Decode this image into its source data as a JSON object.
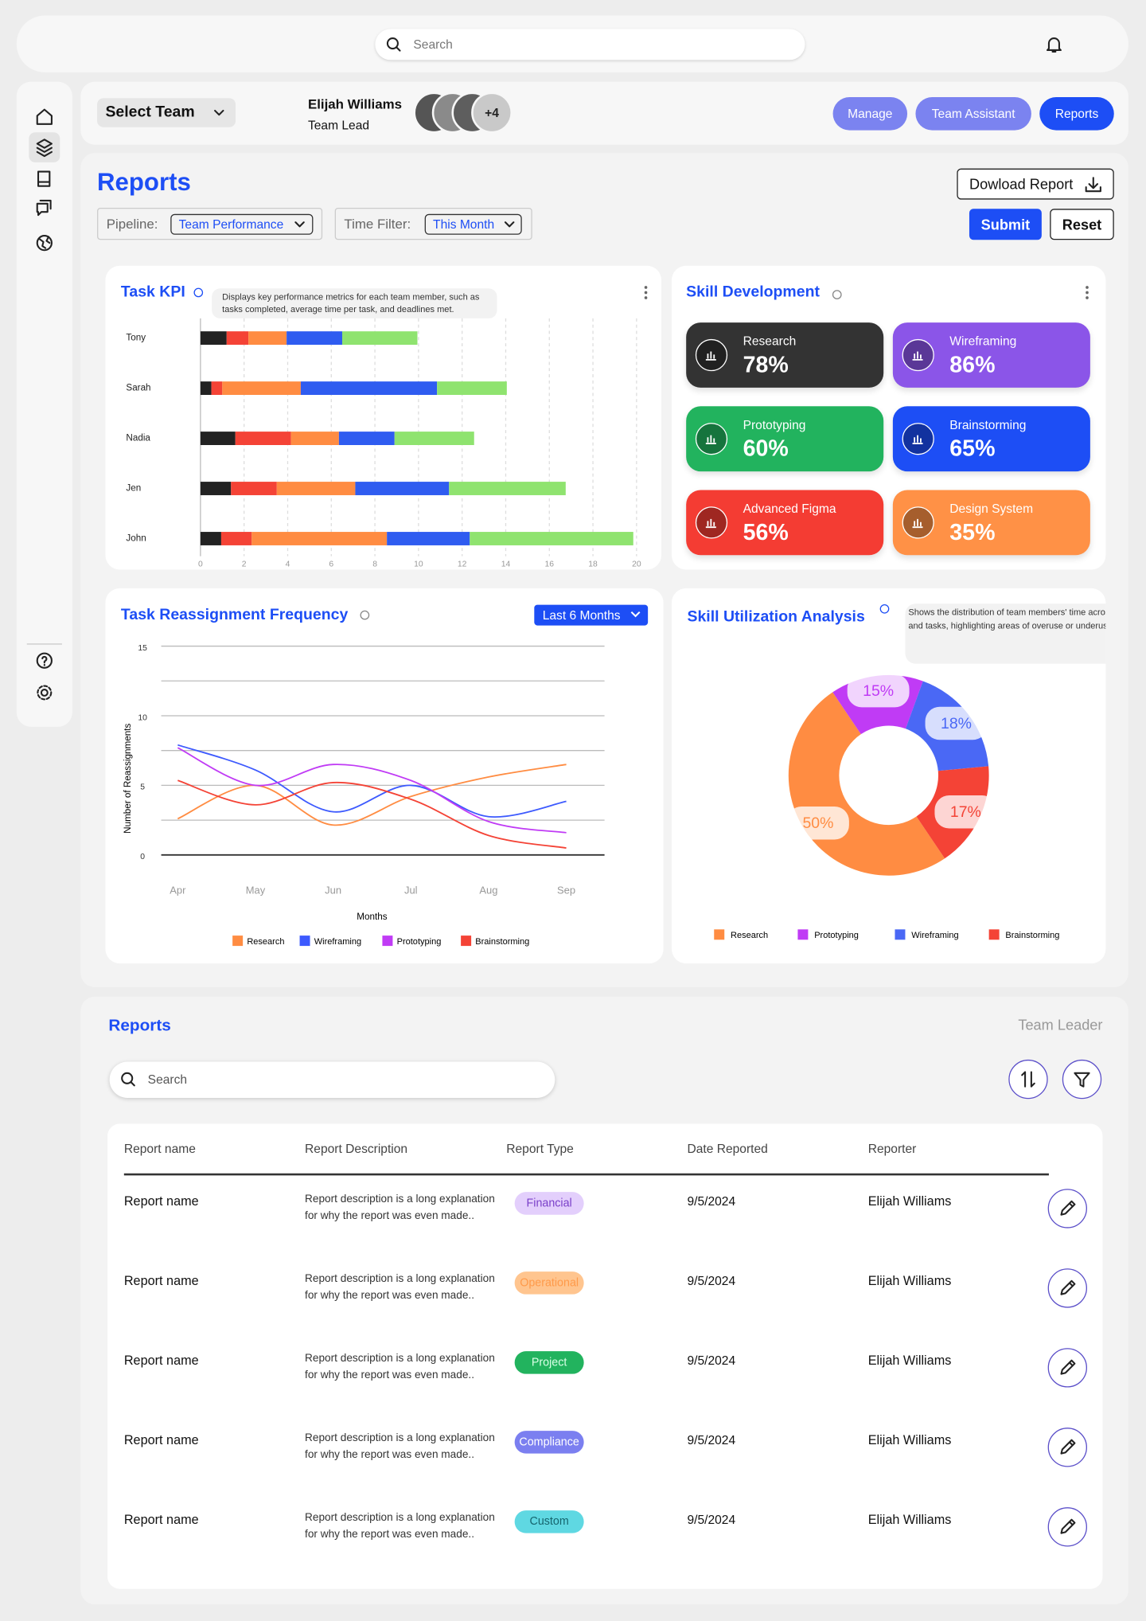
{
  "top_bar": {
    "search_placeholder": "Search"
  },
  "header": {
    "team_select": "Select Team",
    "user_name": "Elijah Williams",
    "user_role": "Team Lead",
    "avatar_more": "+4",
    "buttons": [
      "Manage",
      "Team Assistant",
      "Reports"
    ]
  },
  "reports_panel": {
    "title": "Reports",
    "pipeline_label": "Pipeline:",
    "pipeline_value": "Team Performance",
    "time_filter_label": "Time Filter:",
    "time_filter_value": "This Month",
    "download_button": "Dowload Report",
    "submit_button": "Submit",
    "reset_button": "Reset"
  },
  "task_kpi": {
    "type": "bar",
    "orientation": "horizontal",
    "stacked": true,
    "title": "Task KPI",
    "description": "Displays key performance metrics for each team member, such as tasks completed, average time per task, and deadlines met.",
    "categories": [
      "Tony",
      "Sarah",
      "Nadia",
      "Jen",
      "John"
    ],
    "series": [
      {
        "color": "#222222",
        "values": [
          1.2,
          0.5,
          1.6,
          1.4,
          0.95
        ]
      },
      {
        "color": "#f44336",
        "values": [
          1.0,
          0.5,
          2.55,
          2.1,
          1.4
        ]
      },
      {
        "color": "#ff8c42",
        "values": [
          1.75,
          3.6,
          2.2,
          3.6,
          6.2
        ]
      },
      {
        "color": "#2f5cf0",
        "values": [
          2.55,
          6.25,
          2.55,
          4.3,
          3.8
        ]
      },
      {
        "color": "#8fe36f",
        "values": [
          3.45,
          3.2,
          3.65,
          5.35,
          7.5
        ]
      }
    ],
    "xlim": [
      0,
      20
    ],
    "xticks": [
      0,
      2,
      4,
      6,
      8,
      10,
      12,
      14,
      16,
      18,
      20
    ],
    "grid": true
  },
  "skill_development": {
    "title": "Skill Development",
    "skills": [
      {
        "name": "Research",
        "value": "78%",
        "color": "#333333"
      },
      {
        "name": "Wireframing",
        "value": "86%",
        "color": "#8b55e8"
      },
      {
        "name": "Prototyping",
        "value": "60%",
        "color": "#22b35e"
      },
      {
        "name": "Brainstorming",
        "value": "65%",
        "color": "#1d4ef5"
      },
      {
        "name": "Advanced Figma",
        "value": "56%",
        "color": "#f43c33"
      },
      {
        "name": "Design System",
        "value": "35%",
        "color": "#ff9146"
      }
    ]
  },
  "task_reassignment": {
    "type": "line",
    "title": "Task Reassignment Frequency",
    "filter": "Last 6 Months",
    "x_label": "Months",
    "y_label": "Number of Reassignments",
    "categories": [
      "Apr",
      "May",
      "Jun",
      "Jul",
      "Aug",
      "Sep"
    ],
    "series": [
      {
        "name": "Research",
        "color": "#ff8c42",
        "values": [
          2.6,
          5.0,
          2.15,
          4.2,
          5.6,
          6.5
        ]
      },
      {
        "name": "Wireframing",
        "color": "#3d5afe",
        "values": [
          7.9,
          6.1,
          3.1,
          5.0,
          2.75,
          3.85
        ]
      },
      {
        "name": "Prototyping",
        "color": "#c03bf5",
        "values": [
          7.7,
          5.0,
          6.5,
          5.35,
          2.4,
          1.6
        ]
      },
      {
        "name": "Brainstorming",
        "color": "#f44336",
        "values": [
          5.35,
          3.6,
          5.2,
          4.0,
          1.4,
          0.5
        ]
      }
    ],
    "ylim": [
      0,
      15
    ],
    "yticks": [
      0,
      5,
      10,
      15
    ],
    "grid": true
  },
  "skill_utilization": {
    "type": "pie",
    "donut": true,
    "title": "Skill Utilization Analysis",
    "description": "Shows the distribution of team members' time across skills and tasks, highlighting areas of overuse or underuse.",
    "categories": [
      "Research",
      "Prototyping",
      "Wireframing",
      "Brainstorming"
    ],
    "values": [
      50,
      15,
      18,
      17
    ],
    "value_labels": [
      "50%",
      "15%",
      "18%",
      "17%"
    ],
    "colors": [
      "#ff8c42",
      "#c03bf5",
      "#4a68f5",
      "#f44336"
    ]
  },
  "reports_table": {
    "title": "Reports",
    "subtitle": "Team Leader",
    "search_placeholder": "Search",
    "columns": [
      "Report name",
      "Report Description",
      "Report Type",
      "Date Reported",
      "Reporter"
    ],
    "rows": [
      [
        "Report name",
        "Report description is a long explanation for why the report was even made..",
        "Financial",
        "9/5/2024",
        "Elijah Williams"
      ],
      [
        "Report name",
        "Report description is a long explanation for why the report was even made..",
        "Operational",
        "9/5/2024",
        "Elijah Williams"
      ],
      [
        "Report name",
        "Report description is a long explanation for why the report was even made..",
        "Project",
        "9/5/2024",
        "Elijah Williams"
      ],
      [
        "Report name",
        "Report description is a long explanation for why the report was even made..",
        "Compliance",
        "9/5/2024",
        "Elijah Williams"
      ],
      [
        "Report name",
        "Report description is a long explanation for why the report was even made..",
        "Custom",
        "9/5/2024",
        "Elijah Williams"
      ]
    ],
    "type_styles": [
      {
        "background": "#e3cffc",
        "color": "#7a3fc9"
      },
      {
        "background": "#ffc58f",
        "color": "#ff9a4a"
      },
      {
        "background": "#22b35e",
        "color": "#d9ffe6"
      },
      {
        "background": "#7b7ff0",
        "color": "#ffffff"
      },
      {
        "background": "#5fd8e2",
        "color": "#16656e"
      }
    ]
  }
}
